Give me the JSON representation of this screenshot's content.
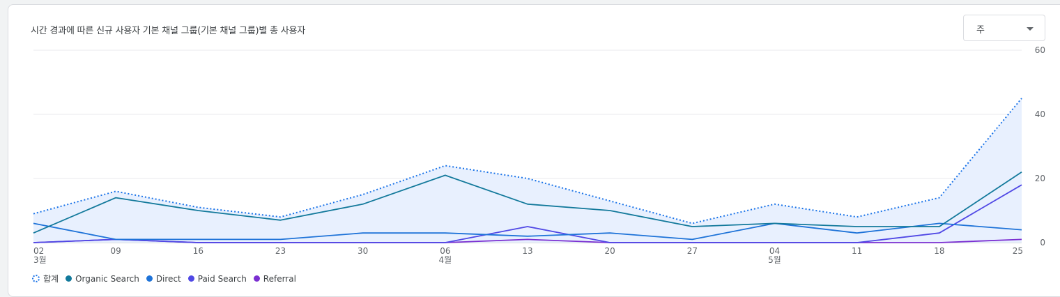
{
  "card": {
    "title": "시간 경과에 따른 신규 사용자 기본 채널 그룹(기본 채널 그룹)별 총 사용자",
    "period_select": "주"
  },
  "colors": {
    "total": "#1a73e8",
    "organic_search": "#12799b",
    "direct": "#1e73d8",
    "paid_search": "#5048e5",
    "referral": "#7b2fd1",
    "area_fill": "#e8f0fe",
    "grid": "#e8eaed"
  },
  "legend": [
    {
      "name": "합계",
      "icon": "dotted-circle-icon"
    },
    {
      "name": "Organic Search",
      "icon": "dot-icon"
    },
    {
      "name": "Direct",
      "icon": "dot-icon"
    },
    {
      "name": "Paid Search",
      "icon": "dot-icon"
    },
    {
      "name": "Referral",
      "icon": "dot-icon"
    }
  ],
  "chart_data": {
    "type": "line",
    "x": [
      "02",
      "09",
      "16",
      "23",
      "30",
      "06",
      "13",
      "20",
      "27",
      "04",
      "11",
      "18",
      "25"
    ],
    "month_labels": [
      {
        "index": 0,
        "label": "3월"
      },
      {
        "index": 5,
        "label": "4월"
      },
      {
        "index": 9,
        "label": "5월"
      }
    ],
    "y_ticks": [
      0,
      20,
      40,
      60
    ],
    "ylim": [
      0,
      60
    ],
    "y_axis_side": "right",
    "grid": true,
    "legend_position": "bottom-left",
    "series": [
      {
        "name": "합계",
        "style": "dotted-area",
        "values": [
          9,
          16,
          11,
          8,
          15,
          24,
          20,
          13,
          6,
          12,
          8,
          14,
          45
        ]
      },
      {
        "name": "Organic Search",
        "values": [
          3,
          14,
          10,
          7,
          12,
          21,
          12,
          10,
          5,
          6,
          5,
          5,
          22
        ]
      },
      {
        "name": "Direct",
        "values": [
          6,
          1,
          1,
          1,
          3,
          3,
          2,
          3,
          1,
          6,
          3,
          6,
          4
        ]
      },
      {
        "name": "Paid Search",
        "values": [
          0,
          1,
          0,
          0,
          0,
          0,
          5,
          0,
          0,
          0,
          0,
          3,
          18
        ]
      },
      {
        "name": "Referral",
        "values": [
          0,
          1,
          0,
          0,
          0,
          0,
          1,
          0,
          0,
          0,
          0,
          0,
          1
        ]
      }
    ]
  }
}
